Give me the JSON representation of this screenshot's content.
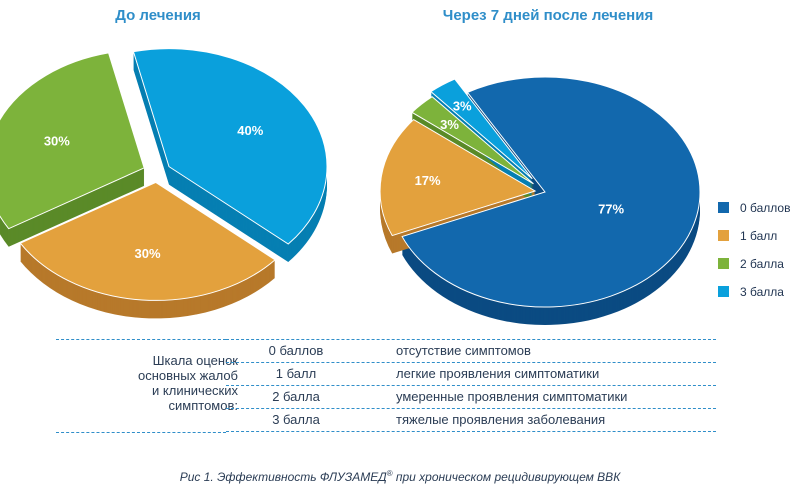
{
  "chart_data": [
    {
      "type": "pie",
      "title": "До лечения",
      "slices": [
        {
          "label": "0 баллов",
          "value": 40,
          "text": "40%",
          "color": "#0aa0dc",
          "side": "#067fb2"
        },
        {
          "label": "1 балл",
          "value": 30,
          "text": "30%",
          "color": "#e3a13d",
          "side": "#b7792a"
        },
        {
          "label": "2 балла",
          "value": 30,
          "text": "30%",
          "color": "#7db33b",
          "side": "#5a8a28"
        }
      ]
    },
    {
      "type": "pie",
      "title": "Через 7 дней после лечения",
      "slices": [
        {
          "label": "0 баллов",
          "value": 77,
          "text": "77%",
          "color": "#1268ad",
          "side": "#0b4b82"
        },
        {
          "label": "1 балл",
          "value": 17,
          "text": "17%",
          "color": "#e3a13d",
          "side": "#b7792a"
        },
        {
          "label": "2 балла",
          "value": 3,
          "text": "3%",
          "color": "#7db33b",
          "side": "#5a8a28"
        },
        {
          "label": "3 балла",
          "value": 3,
          "text": "3%",
          "color": "#0aa0dc",
          "side": "#067fb2"
        }
      ]
    }
  ],
  "legend": [
    {
      "label": "0 баллов",
      "color": "#1268ad"
    },
    {
      "label": "1 балл",
      "color": "#e3a13d"
    },
    {
      "label": "2 балла",
      "color": "#7db33b"
    },
    {
      "label": "3 балла",
      "color": "#0aa0dc"
    }
  ],
  "scale": {
    "heading": [
      "Шкала оценок",
      "основных жалоб",
      "и клинических",
      "симптомов:"
    ],
    "rows": [
      {
        "score": "0 баллов",
        "desc": "отсутствие симптомов"
      },
      {
        "score": "1 балл",
        "desc": "легкие проявления симптоматики"
      },
      {
        "score": "2 балла",
        "desc": "умеренные проявления симптоматики"
      },
      {
        "score": "3 балла",
        "desc": "тяжелые проявления заболевания"
      }
    ]
  },
  "caption": {
    "prefix": "Рис 1.  Эффективность ФЛУЗАМЕД",
    "reg": "®",
    "suffix": " при хроническом рецидивирующем ВВК"
  }
}
